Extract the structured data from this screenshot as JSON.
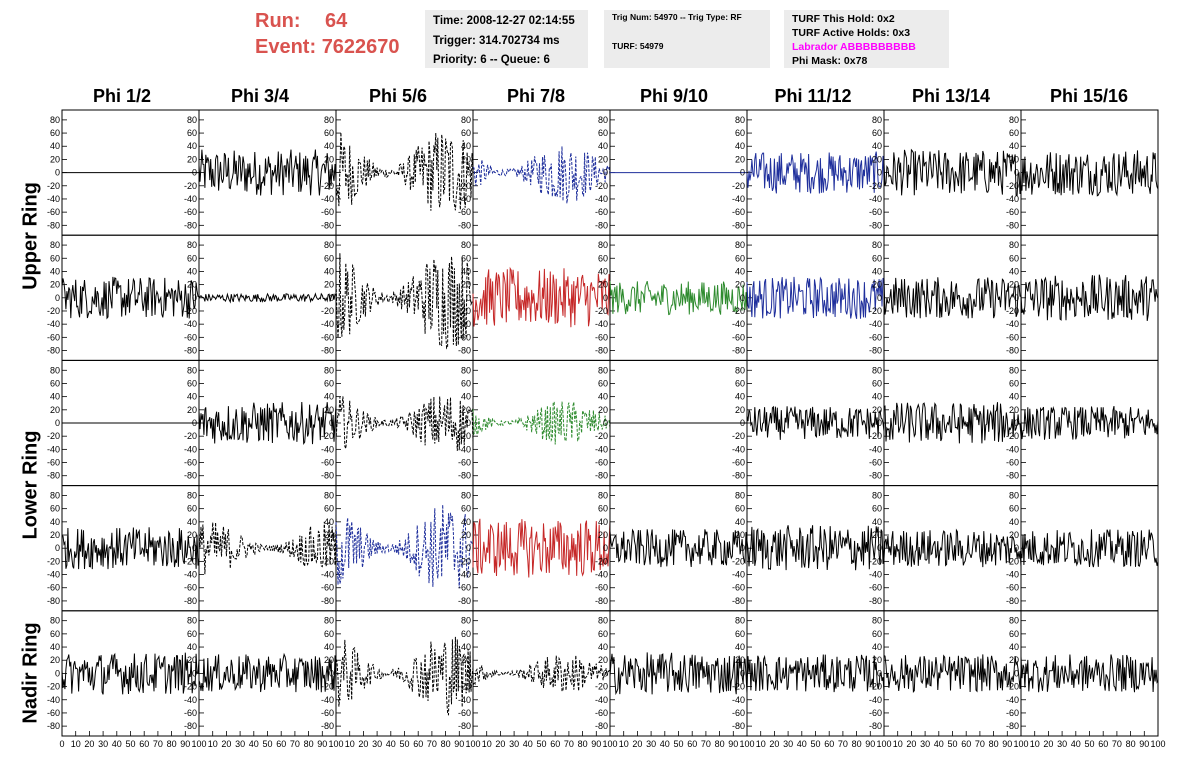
{
  "run": {
    "label": "Run:",
    "value": "64"
  },
  "event": {
    "label": "Event:",
    "value": "7622670"
  },
  "info_time": {
    "time": "Time: 2008-12-27 02:14:55",
    "trigger": "Trigger: 314.702734 ms",
    "priority": "Priority: 6 -- Queue: 6"
  },
  "info_trig": {
    "trig": "Trig Num: 54970 -- Trig Type: RF",
    "turf": "TURF: 54979"
  },
  "info_turf": {
    "this_hold": "TURF This Hold: 0x2",
    "active_holds": "TURF Active Holds: 0x3",
    "labrador": "Labrador ABBBBBBBBB",
    "phi_mask": "Phi Mask: 0x78"
  },
  "phi_labels": [
    "Phi 1/2",
    "Phi 3/4",
    "Phi 5/6",
    "Phi 7/8",
    "Phi 9/10",
    "Phi 11/12",
    "Phi 13/14",
    "Phi 15/16"
  ],
  "ring_labels": [
    "Upper Ring",
    "Lower Ring",
    "Nadir Ring"
  ],
  "chart_data": {
    "type": "line",
    "layout": "grid 5 rows x 8 columns of waveform panels",
    "y_ticks": [
      80,
      60,
      40,
      20,
      0,
      -20,
      -40,
      -60,
      -80
    ],
    "x_ticks": [
      0,
      10,
      20,
      30,
      40,
      50,
      60,
      70,
      80,
      90,
      100
    ],
    "xlim": [
      0,
      100
    ],
    "ylim": [
      -95,
      95
    ],
    "colors": {
      "solid": "#000000",
      "dashed": "#000000",
      "blue": "#1f2f9c",
      "red": "#c62828",
      "green": "#2e8b2e"
    },
    "panels": [
      [
        {
          "s": "flat",
          "c": "solid",
          "a": 0
        },
        {
          "s": "solid",
          "c": "solid",
          "a": 22
        },
        {
          "s": "dashed",
          "c": "dashed",
          "a": 45
        },
        {
          "s": "dashed",
          "c": "blue",
          "a": 30
        },
        {
          "s": "flat",
          "c": "blue",
          "a": 0
        },
        {
          "s": "solid",
          "c": "blue",
          "a": 20
        },
        {
          "s": "solid",
          "c": "solid",
          "a": 22
        },
        {
          "s": "solid",
          "c": "solid",
          "a": 22
        }
      ],
      [
        {
          "s": "solid",
          "c": "solid",
          "a": 20
        },
        {
          "s": "solid",
          "c": "solid",
          "a": 4
        },
        {
          "s": "dashed",
          "c": "dashed",
          "a": 50
        },
        {
          "s": "solid",
          "c": "red",
          "a": 28
        },
        {
          "s": "solid",
          "c": "green",
          "a": 16
        },
        {
          "s": "solid",
          "c": "blue",
          "a": 20
        },
        {
          "s": "solid",
          "c": "solid",
          "a": 20
        },
        {
          "s": "solid",
          "c": "solid",
          "a": 22
        }
      ],
      [
        {
          "s": "flat",
          "c": "solid",
          "a": 0
        },
        {
          "s": "solid",
          "c": "solid",
          "a": 20
        },
        {
          "s": "dashed",
          "c": "dashed",
          "a": 30
        },
        {
          "s": "dashed",
          "c": "green",
          "a": 22
        },
        {
          "s": "flat",
          "c": "solid",
          "a": 0
        },
        {
          "s": "solid",
          "c": "solid",
          "a": 16
        },
        {
          "s": "solid",
          "c": "solid",
          "a": 20
        },
        {
          "s": "solid",
          "c": "solid",
          "a": 16
        }
      ],
      [
        {
          "s": "solid",
          "c": "solid",
          "a": 20
        },
        {
          "s": "dashed",
          "c": "dashed",
          "a": 26
        },
        {
          "s": "dashed",
          "c": "blue",
          "a": 45
        },
        {
          "s": "solid",
          "c": "red",
          "a": 28
        },
        {
          "s": "solid",
          "c": "solid",
          "a": 18
        },
        {
          "s": "solid",
          "c": "solid",
          "a": 22
        },
        {
          "s": "solid",
          "c": "solid",
          "a": 18
        },
        {
          "s": "solid",
          "c": "solid",
          "a": 18
        }
      ],
      [
        {
          "s": "solid",
          "c": "solid",
          "a": 20
        },
        {
          "s": "solid",
          "c": "solid",
          "a": 18
        },
        {
          "s": "dashed",
          "c": "dashed",
          "a": 40
        },
        {
          "s": "dashed",
          "c": "dashed",
          "a": 20
        },
        {
          "s": "solid",
          "c": "solid",
          "a": 20
        },
        {
          "s": "solid",
          "c": "solid",
          "a": 18
        },
        {
          "s": "solid",
          "c": "solid",
          "a": 18
        },
        {
          "s": "solid",
          "c": "solid",
          "a": 18
        }
      ]
    ]
  }
}
